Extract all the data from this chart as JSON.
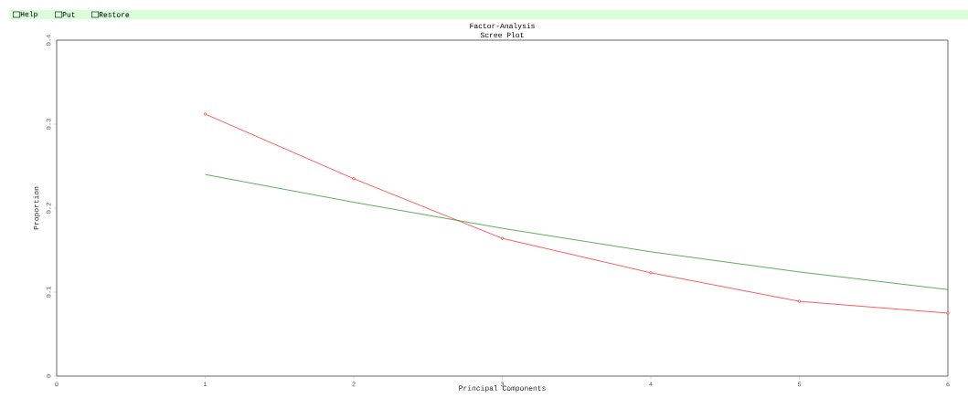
{
  "chart_data": {
    "type": "line",
    "title": "Factor-Analysis",
    "subtitle": "Scree Plot",
    "xlabel": "Principal Components",
    "ylabel": "Proportion",
    "annotations": [
      "Help",
      "Put",
      "Restore"
    ],
    "x": [
      1,
      2,
      3,
      4,
      5,
      6
    ],
    "series": [
      {
        "color": "#ff3333",
        "marker": "circle",
        "values": [
          0.312,
          0.235,
          0.164,
          0.123,
          0.089,
          0.075
        ]
      },
      {
        "color": "#339933",
        "marker": "none",
        "values": [
          0.24,
          0.207,
          0.176,
          0.148,
          0.124,
          0.103
        ]
      }
    ],
    "xlim": [
      0,
      6
    ],
    "ylim": [
      0,
      0.4
    ],
    "xticks": [
      0,
      1,
      2,
      3,
      4,
      5,
      6
    ],
    "yticks": [
      0,
      0.1,
      0.2,
      0.3,
      0.4
    ],
    "grid": false,
    "line_style": "solid"
  }
}
